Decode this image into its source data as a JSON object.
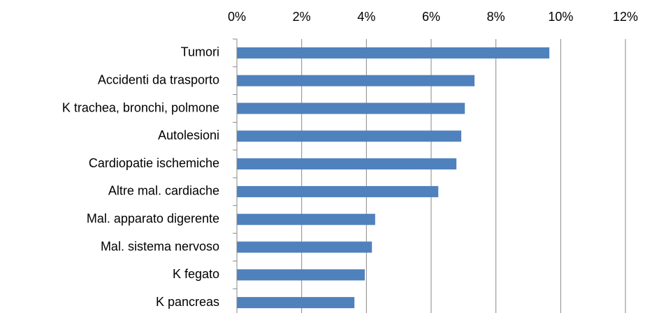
{
  "chart_data": {
    "type": "barh",
    "categories": [
      "Tumori",
      "Accidenti da trasporto",
      "K trachea, bronchi, polmone",
      "Autolesioni",
      "Cardiopatie ischemiche",
      "Altre mal. cardiache",
      "Mal. apparato digerente",
      "Mal. sistema nervoso",
      "K fegato",
      "K pancreas"
    ],
    "values": [
      9.65,
      7.34,
      7.04,
      6.93,
      6.78,
      6.22,
      4.27,
      4.17,
      3.95,
      3.63
    ],
    "color": "#4f81bd",
    "xlim": [
      0,
      12
    ],
    "xticks": [
      {
        "value": 0,
        "label": "0%"
      },
      {
        "value": 2,
        "label": "2%"
      },
      {
        "value": 4,
        "label": "4%"
      },
      {
        "value": 6,
        "label": "6%"
      },
      {
        "value": 8,
        "label": "8%"
      },
      {
        "value": 10,
        "label": "10%"
      },
      {
        "value": 12,
        "label": "12%"
      }
    ],
    "grid": true
  }
}
